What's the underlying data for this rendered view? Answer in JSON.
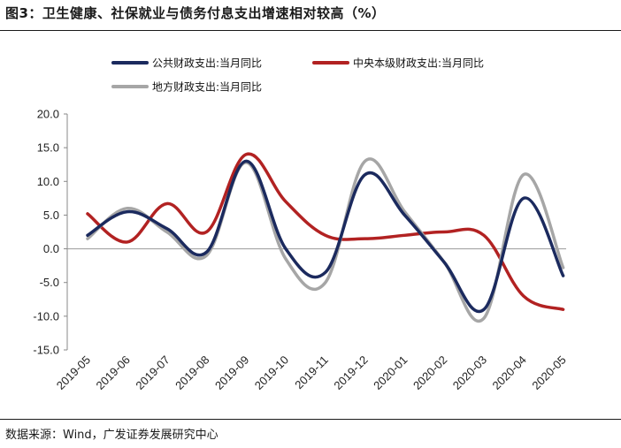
{
  "title": "图3：卫生健康、社保就业与债务付息支出增速相对较高（%）",
  "source": "数据来源：Wind，广发证券发展研究中心",
  "chart_data": {
    "type": "line",
    "categories": [
      "2019-05",
      "2019-06",
      "2019-07",
      "2019-08",
      "2019-09",
      "2019-10",
      "2019-11",
      "2019-12",
      "2020-01",
      "2020-02",
      "2020-03",
      "2020-04",
      "2020-05"
    ],
    "ylim": [
      -15,
      20
    ],
    "yticks": [
      "20.0",
      "15.0",
      "10.0",
      "5.0",
      "0.0",
      "-5.0",
      "-10.0",
      "-15.0"
    ],
    "series": [
      {
        "name": "公共财政支出:当月同比",
        "color": "#1b2a5e",
        "values": [
          2.0,
          5.5,
          3.0,
          -0.5,
          13.0,
          0.0,
          -3.5,
          11.0,
          5.0,
          -2.0,
          -9.0,
          7.5,
          -4.0
        ]
      },
      {
        "name": "中央本级财政支出:当月同比",
        "color": "#b22222",
        "values": [
          5.2,
          1.0,
          6.7,
          2.5,
          14.0,
          7.0,
          2.0,
          1.5,
          2.0,
          2.5,
          2.0,
          -7.0,
          -9.0
        ]
      },
      {
        "name": "地方财政支出:当月同比",
        "color": "#a6a6a6",
        "values": [
          1.5,
          6.0,
          2.5,
          -1.0,
          12.8,
          -1.5,
          -5.0,
          13.0,
          5.5,
          -2.0,
          -10.3,
          11.0,
          -2.8
        ]
      }
    ]
  }
}
